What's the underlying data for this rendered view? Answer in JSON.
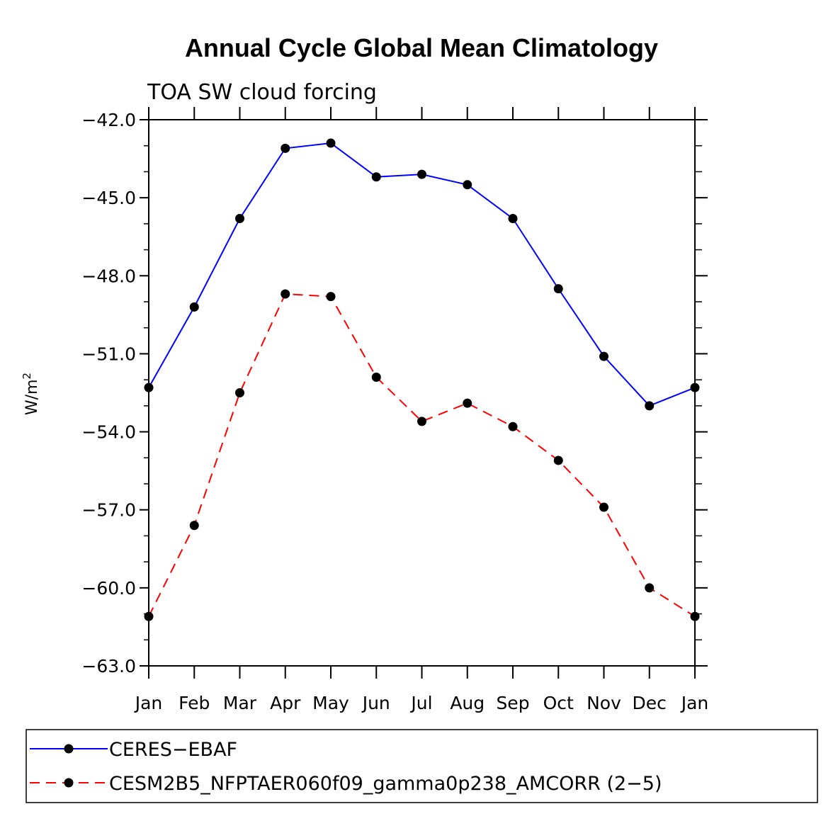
{
  "chart_data": {
    "type": "line",
    "title": "Annual Cycle Global Mean Climatology",
    "subtitle": "TOA SW cloud forcing",
    "xlabel": "",
    "ylabel": "W/m",
    "ylabel_superscript": "2",
    "categories": [
      "Jan",
      "Feb",
      "Mar",
      "Apr",
      "May",
      "Jun",
      "Jul",
      "Aug",
      "Sep",
      "Oct",
      "Nov",
      "Dec",
      "Jan"
    ],
    "ylim": [
      -63,
      -42
    ],
    "yticks": [
      -42,
      -45,
      -48,
      -51,
      -54,
      -57,
      -60,
      -63
    ],
    "ytick_labels": [
      "−42.0",
      "−45.0",
      "−48.0",
      "−51.0",
      "−54.0",
      "−57.0",
      "−60.0",
      "−63.0"
    ],
    "series": [
      {
        "name": "CERES−EBAF",
        "color": "#0000ff",
        "dash": "solid",
        "values": [
          -52.3,
          -49.2,
          -45.8,
          -43.1,
          -42.9,
          -44.2,
          -44.1,
          -44.5,
          -45.8,
          -48.5,
          -51.1,
          -53.0,
          -52.3
        ]
      },
      {
        "name": "CESM2B5_NFPTAER060f09_gamma0p238_AMCORR (2−5)",
        "color": "#ff0000",
        "dash": "dashed",
        "values": [
          -61.1,
          -57.6,
          -52.5,
          -48.7,
          -48.8,
          -51.9,
          -53.6,
          -52.9,
          -53.8,
          -55.1,
          -56.9,
          -60.0,
          -61.1
        ]
      }
    ],
    "legend_position": "bottom"
  }
}
